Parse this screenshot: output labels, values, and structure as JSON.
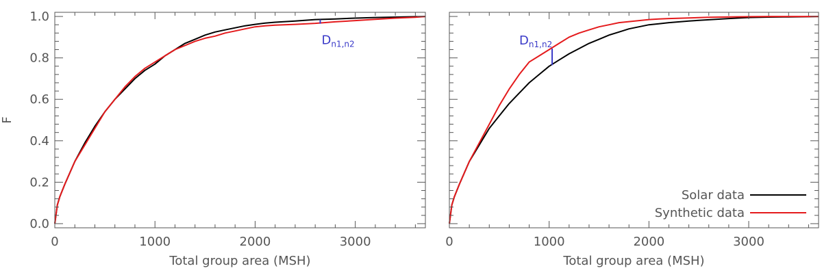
{
  "colors": {
    "solar": "#000000",
    "synthetic": "#e41a1c",
    "annotation": "#3a3ac8",
    "axis": "#555555"
  },
  "chart_data": [
    {
      "type": "line",
      "xlabel": "Total group area (MSH)",
      "ylabel": "F",
      "xlim": [
        0,
        3700
      ],
      "ylim": [
        -0.02,
        1.02
      ],
      "xticks": [
        "0",
        "1000",
        "2000",
        "3000"
      ],
      "yticks": [
        "0.0",
        "0.2",
        "0.4",
        "0.6",
        "0.8",
        "1.0"
      ],
      "grid": false,
      "annotation": {
        "text": "D",
        "subscript": "n1,n2",
        "x": 2650,
        "y_top": 0.985,
        "y_bottom": 0.965
      },
      "series": [
        {
          "name": "Solar data",
          "x": [
            0,
            25,
            50,
            100,
            200,
            300,
            400,
            500,
            600,
            700,
            800,
            900,
            1000,
            1100,
            1200,
            1300,
            1400,
            1500,
            1600,
            1700,
            1800,
            1900,
            2000,
            2100,
            2200,
            2400,
            2600,
            2800,
            3000,
            3200,
            3400,
            3600,
            3700
          ],
          "y": [
            0.0,
            0.09,
            0.13,
            0.19,
            0.3,
            0.39,
            0.47,
            0.54,
            0.6,
            0.65,
            0.7,
            0.74,
            0.77,
            0.81,
            0.84,
            0.87,
            0.89,
            0.91,
            0.925,
            0.935,
            0.945,
            0.955,
            0.962,
            0.968,
            0.972,
            0.978,
            0.985,
            0.988,
            0.992,
            0.995,
            0.997,
            0.999,
            1.0
          ]
        },
        {
          "name": "Synthetic data",
          "x": [
            0,
            25,
            50,
            100,
            200,
            300,
            400,
            500,
            600,
            700,
            800,
            900,
            1000,
            1100,
            1200,
            1300,
            1400,
            1500,
            1600,
            1700,
            1800,
            1900,
            2000,
            2100,
            2200,
            2400,
            2600,
            2800,
            3000,
            3200,
            3400,
            3600,
            3700
          ],
          "y": [
            0.0,
            0.09,
            0.13,
            0.19,
            0.3,
            0.38,
            0.46,
            0.54,
            0.6,
            0.66,
            0.71,
            0.75,
            0.78,
            0.81,
            0.84,
            0.86,
            0.88,
            0.895,
            0.905,
            0.92,
            0.93,
            0.94,
            0.95,
            0.955,
            0.958,
            0.962,
            0.967,
            0.974,
            0.98,
            0.986,
            0.992,
            0.996,
            1.0
          ]
        }
      ]
    },
    {
      "type": "line",
      "xlabel": "Total group area (MSH)",
      "ylabel": "",
      "xlim": [
        0,
        3700
      ],
      "ylim": [
        -0.02,
        1.02
      ],
      "xticks": [
        "0",
        "1000",
        "2000",
        "3000"
      ],
      "yticks": [],
      "grid": false,
      "legend": "bottom-right",
      "annotation": {
        "text": "D",
        "subscript": "n1,n2",
        "x": 1030,
        "y_top": 0.845,
        "y_bottom": 0.765
      },
      "series": [
        {
          "name": "Solar data",
          "x": [
            0,
            25,
            50,
            100,
            200,
            300,
            400,
            500,
            600,
            700,
            800,
            900,
            1000,
            1100,
            1200,
            1300,
            1400,
            1500,
            1600,
            1700,
            1800,
            1900,
            2000,
            2100,
            2200,
            2400,
            2600,
            2800,
            3000,
            3200,
            3400,
            3600,
            3700
          ],
          "y": [
            0.0,
            0.09,
            0.13,
            0.19,
            0.3,
            0.38,
            0.46,
            0.52,
            0.58,
            0.63,
            0.68,
            0.72,
            0.76,
            0.79,
            0.82,
            0.845,
            0.87,
            0.89,
            0.91,
            0.925,
            0.94,
            0.95,
            0.96,
            0.965,
            0.97,
            0.978,
            0.984,
            0.99,
            0.995,
            0.997,
            0.998,
            0.999,
            1.0
          ]
        },
        {
          "name": "Synthetic data",
          "x": [
            0,
            25,
            50,
            100,
            200,
            300,
            400,
            500,
            600,
            700,
            800,
            900,
            1000,
            1100,
            1200,
            1300,
            1400,
            1500,
            1600,
            1700,
            1800,
            1900,
            2000,
            2100,
            2200,
            2400,
            2600,
            2800,
            3000,
            3200,
            3400,
            3600,
            3700
          ],
          "y": [
            0.0,
            0.09,
            0.13,
            0.19,
            0.3,
            0.39,
            0.48,
            0.57,
            0.65,
            0.72,
            0.78,
            0.81,
            0.84,
            0.87,
            0.9,
            0.92,
            0.935,
            0.95,
            0.96,
            0.97,
            0.975,
            0.98,
            0.985,
            0.988,
            0.99,
            0.993,
            0.996,
            0.998,
            0.999,
            1.0,
            1.0,
            1.0,
            1.0
          ]
        }
      ]
    }
  ]
}
